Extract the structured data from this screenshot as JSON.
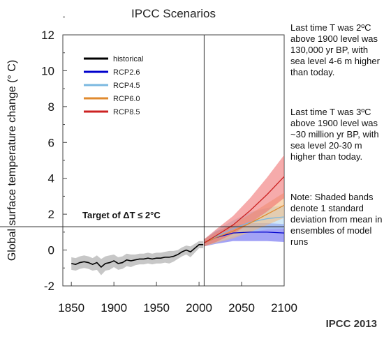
{
  "chart_data": {
    "type": "line",
    "title": "IPCC Scenarios",
    "ylabel": "Global surface temperature change (° C)",
    "xlabel": "",
    "xlim": [
      1840,
      2100
    ],
    "ylim": [
      -2,
      12
    ],
    "xticks": [
      1850,
      1900,
      1950,
      2000,
      2050,
      2100
    ],
    "yticks": [
      -2,
      0,
      2,
      4,
      6,
      8,
      10,
      12
    ],
    "grid": false,
    "divider_year": 2006,
    "legend_position": "top-left",
    "target": {
      "value": 1.3,
      "label": "Target of ΔT ≤ 2°C"
    },
    "series": [
      {
        "name": "historical",
        "color": "#000000",
        "band_color": "#999999",
        "x": [
          1850,
          1855,
          1860,
          1865,
          1870,
          1875,
          1880,
          1885,
          1890,
          1895,
          1900,
          1905,
          1910,
          1915,
          1920,
          1925,
          1930,
          1935,
          1940,
          1945,
          1950,
          1955,
          1960,
          1965,
          1970,
          1975,
          1980,
          1985,
          1990,
          1995,
          2000,
          2005
        ],
        "values": [
          -0.75,
          -0.8,
          -0.7,
          -0.65,
          -0.7,
          -0.8,
          -0.7,
          -0.95,
          -0.75,
          -0.7,
          -0.6,
          -0.75,
          -0.7,
          -0.55,
          -0.6,
          -0.55,
          -0.5,
          -0.5,
          -0.45,
          -0.5,
          -0.45,
          -0.45,
          -0.4,
          -0.4,
          -0.35,
          -0.25,
          -0.1,
          0.0,
          -0.1,
          0.1,
          0.3,
          0.3
        ],
        "spread": [
          0.35,
          0.35,
          0.35,
          0.35,
          0.35,
          0.35,
          0.4,
          0.45,
          0.4,
          0.4,
          0.35,
          0.35,
          0.35,
          0.35,
          0.35,
          0.3,
          0.3,
          0.3,
          0.3,
          0.3,
          0.3,
          0.3,
          0.3,
          0.35,
          0.3,
          0.25,
          0.25,
          0.25,
          0.3,
          0.25,
          0.2,
          0.2
        ]
      },
      {
        "name": "RCP2.6",
        "color": "#0000cc",
        "band_color": "#5555ee",
        "x": [
          2006,
          2020,
          2040,
          2060,
          2080,
          2100
        ],
        "values": [
          0.4,
          0.7,
          0.95,
          1.0,
          1.0,
          0.95
        ],
        "spread": [
          0.2,
          0.35,
          0.45,
          0.5,
          0.5,
          0.5
        ]
      },
      {
        "name": "RCP4.5",
        "color": "#7bb8e0",
        "band_color": "#a9d3ef",
        "x": [
          2006,
          2020,
          2040,
          2060,
          2080,
          2100
        ],
        "values": [
          0.4,
          0.75,
          1.2,
          1.55,
          1.75,
          1.85
        ],
        "spread": [
          0.2,
          0.35,
          0.45,
          0.55,
          0.6,
          0.65
        ]
      },
      {
        "name": "RCP6.0",
        "color": "#e08a2e",
        "band_color": "#f2b878",
        "x": [
          2006,
          2020,
          2040,
          2060,
          2080,
          2100
        ],
        "values": [
          0.4,
          0.7,
          1.05,
          1.5,
          2.0,
          2.5
        ],
        "spread": [
          0.2,
          0.3,
          0.4,
          0.5,
          0.6,
          0.7
        ]
      },
      {
        "name": "RCP8.5",
        "color": "#cc2222",
        "band_color": "#ee6666",
        "x": [
          2006,
          2020,
          2040,
          2060,
          2080,
          2100
        ],
        "values": [
          0.4,
          0.8,
          1.4,
          2.2,
          3.1,
          4.1
        ],
        "spread": [
          0.2,
          0.35,
          0.5,
          0.7,
          0.95,
          1.2
        ]
      }
    ]
  },
  "notes": {
    "note1": "Last time T was 2ºC above 1900 level was 130,000 yr BP, with sea level 4-6 m higher than today.",
    "note2": "Last time T was 3ºC above 1900 level was ~30 million yr BP, with sea level 20-30 m higher than today.",
    "note3": "Note: Shaded bands denote 1 standard deviation from mean in ensembles of model runs"
  },
  "source": "IPCC 2013"
}
